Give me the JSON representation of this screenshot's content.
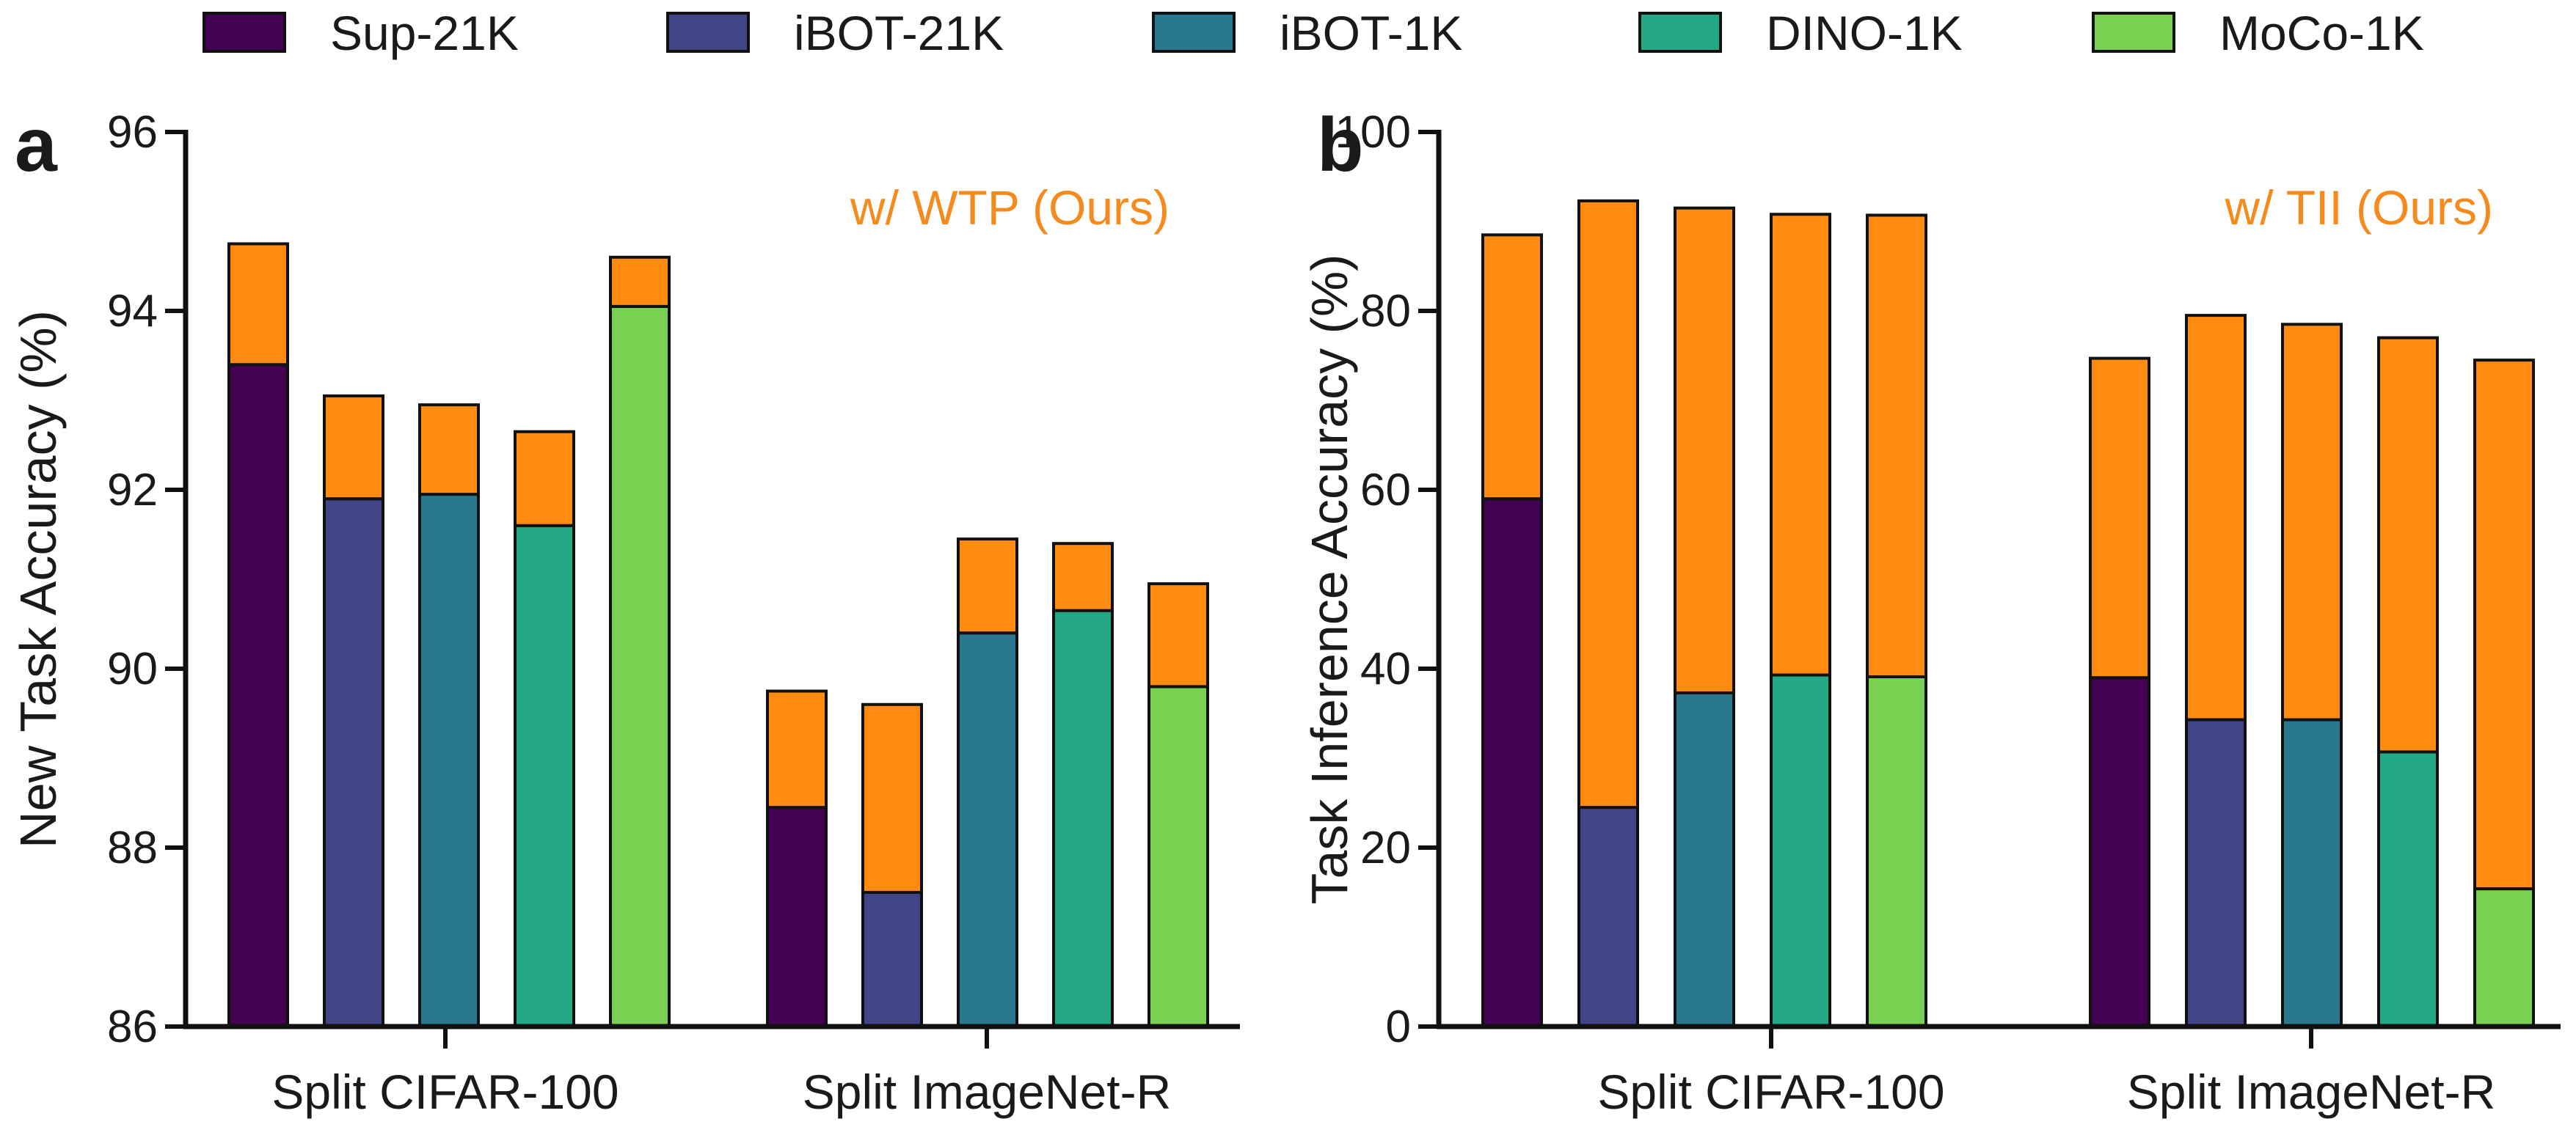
{
  "legend": [
    {
      "label": "Sup-21K",
      "color": "#440154"
    },
    {
      "label": "iBOT-21K",
      "color": "#414487"
    },
    {
      "label": "iBOT-1K",
      "color": "#2A788E"
    },
    {
      "label": "DINO-1K",
      "color": "#22A884"
    },
    {
      "label": "MoCo-1K",
      "color": "#7AD151"
    }
  ],
  "gain_color": "#FF8C10",
  "chart_data": [
    {
      "type": "bar",
      "stacked": true,
      "panel_letter": "a",
      "annotation": "w/ WTP (Ours)",
      "ylabel": "New Task Accuracy (%)",
      "xlabel": "",
      "ylim": [
        86,
        96
      ],
      "yticks": [
        86,
        88,
        90,
        92,
        94,
        96
      ],
      "categories": [
        "Split CIFAR-100",
        "Split ImageNet-R"
      ],
      "series": [
        {
          "name": "Sup-21K",
          "base": [
            93.4,
            88.45
          ],
          "with_method": [
            94.75,
            89.75
          ]
        },
        {
          "name": "iBOT-21K",
          "base": [
            91.9,
            87.5
          ],
          "with_method": [
            93.05,
            89.6
          ]
        },
        {
          "name": "iBOT-1K",
          "base": [
            91.95,
            90.4
          ],
          "with_method": [
            92.95,
            91.45
          ]
        },
        {
          "name": "DINO-1K",
          "base": [
            91.6,
            90.65
          ],
          "with_method": [
            92.65,
            91.4
          ]
        },
        {
          "name": "MoCo-1K",
          "base": [
            94.05,
            89.8
          ],
          "with_method": [
            94.6,
            90.95
          ]
        }
      ]
    },
    {
      "type": "bar",
      "stacked": true,
      "panel_letter": "b",
      "annotation": "w/ TII (Ours)",
      "ylabel": "Task Inference Accuracy (%)",
      "xlabel": "",
      "ylim": [
        0,
        100
      ],
      "yticks": [
        0,
        20,
        40,
        60,
        80,
        100
      ],
      "categories": [
        "Split CIFAR-100",
        "Split ImageNet-R"
      ],
      "series": [
        {
          "name": "Sup-21K",
          "base": [
            59,
            39
          ],
          "with_method": [
            88.5,
            74.7
          ]
        },
        {
          "name": "iBOT-21K",
          "base": [
            24.5,
            34.3
          ],
          "with_method": [
            92.3,
            79.5
          ]
        },
        {
          "name": "iBOT-1K",
          "base": [
            37.3,
            34.3
          ],
          "with_method": [
            91.5,
            78.5
          ]
        },
        {
          "name": "DINO-1K",
          "base": [
            39.3,
            30.7
          ],
          "with_method": [
            90.8,
            77
          ]
        },
        {
          "name": "MoCo-1K",
          "base": [
            39.1,
            15.4
          ],
          "with_method": [
            90.7,
            74.5
          ]
        }
      ]
    }
  ]
}
